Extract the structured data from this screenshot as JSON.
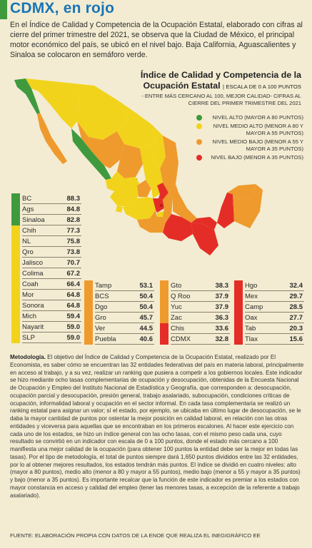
{
  "header": {
    "title": "CDMX, en rojo",
    "intro": "En el Índice de Calidad y Competencia de la Ocupación Estatal, elaborado con cifras al cierre del primer trimestre del 2021, se observa que la Ciudad de México, el principal motor económico del país, se ubicó en el nivel bajo. Baja California, Aguascalientes y Sinaloa se colocaron en semáforo verde."
  },
  "chart_data": {
    "type": "table",
    "title_line1": "Índice de Calidad y Competencia de la",
    "title_line2": "Ocupación Estatal",
    "scale": "ESCALA DE 0 A 100 PUNTOS",
    "subtitle": "- ENTRE MÁS CERCANO AL 100, MEJOR CALIDAD- CIFRAS AL CIERRE DEL PRIMER TRIMESTRE DEL 2021",
    "legend": [
      {
        "label": "NIVEL ALTO (MAYOR A 80 PUNTOS)",
        "color": "#3f9a3e"
      },
      {
        "label": "NIVEL MEDIO ALTO (MENOR A 80 Y MAYOR A 55 PUNTOS)",
        "color": "#f2d31b"
      },
      {
        "label": "NIVEL MEDIO BAJO (MENOR A 55 Y MAYOR A 35 PUNTOS)",
        "color": "#ef9a2d"
      },
      {
        "label": "NIVEL BAJO (MENOR A 35 PUNTOS)",
        "color": "#e42d26"
      }
    ],
    "columns": [
      {
        "level": "alto",
        "color": "#3f9a3e",
        "rows": [
          [
            "BC",
            88.3
          ],
          [
            "Ags",
            84.8
          ],
          [
            "Sinaloa",
            82.8
          ]
        ]
      },
      {
        "level": "medio alto",
        "color": "#f2d31b",
        "rows": [
          [
            "Chih",
            77.3
          ],
          [
            "NL",
            75.8
          ],
          [
            "Qro",
            73.8
          ],
          [
            "Jalisco",
            70.7
          ],
          [
            "Colima",
            67.2
          ],
          [
            "Coah",
            66.4
          ],
          [
            "Mor",
            64.8
          ],
          [
            "Sonora",
            64.8
          ],
          [
            "Mich",
            59.4
          ],
          [
            "Nayarit",
            59.0
          ],
          [
            "SLP",
            59.0
          ]
        ]
      },
      {
        "level": "medio bajo 1",
        "color": "#ef9a2d",
        "rows": [
          [
            "Tamp",
            53.1
          ],
          [
            "BCS",
            50.4
          ],
          [
            "Dgo",
            50.4
          ],
          [
            "Gro",
            45.7
          ],
          [
            "Ver",
            44.5
          ],
          [
            "Puebla",
            40.6
          ]
        ]
      },
      {
        "level": "medio bajo 2",
        "color": "#ef9a2d",
        "rows": [
          [
            "Gto",
            38.3
          ],
          [
            "Q Roo",
            37.9
          ],
          [
            "Yuc",
            37.9
          ],
          [
            "Zac",
            36.3
          ]
        ]
      },
      {
        "level": "bajo 1",
        "color": "#e42d26",
        "rows": [
          [
            "Chis",
            33.6
          ],
          [
            "CDMX",
            32.8
          ]
        ]
      },
      {
        "level": "bajo 2",
        "color": "#e42d26",
        "rows": [
          [
            "Hgo",
            32.4
          ],
          [
            "Mex",
            29.7
          ],
          [
            "Camp",
            28.5
          ],
          [
            "Oax",
            27.7
          ],
          [
            "Tab",
            20.3
          ],
          [
            "Tlax",
            15.6
          ]
        ]
      }
    ]
  },
  "methodology": {
    "label": "Metodología.",
    "text": "El objetivo del Índice de Calidad y Competencia de la Ocupación Estatal, realizado por El Economista, es saber cómo se encuentran las 32 entidades federativas del país en materia laboral, principalmente en acceso al trabajo, y a su vez, realizar un ranking que pusiera a competir a los gobiernos locales. Este indicador se hizo mediante ocho tasas complementarias de ocupación y desocupación, obtenidas de la Encuesta Nacional de Ocupación y Empleo del Instituto Nacional de Estadística y Geografía, que corresponden a: desocupación, ocupación parcial y desocupación, presión general, trabajo asalariado, subocupación, condiciones críticas de ocupación, informalidad laboral y ocupación en el sector informal. En cada tasa complementaria se realizó un ranking estatal para asignar un valor; sí el estado, por ejemplo, se ubicaba en último lugar de desocupación, se le daba la mayor cantidad de puntos por ostentar la mejor posición en calidad laboral, en relación con las otras entidades y viceversa para aquellas que se encontraban en los primeros escalones. Al hacer este ejercicio con cada uno de los estados, se hizo un índice general con las ocho tasas, con el mismo peso cada una, cuyo resultado se convirtió en un indicador con escala de 0 a 100 puntos, donde el estado más cercano a 100 manifiesta una mejor calidad de la ocupación (para obtener 100 puntos la entidad debe ser la mejor en todas las tasas). Por el tipo de metodología, el total de puntos siempre dará 1,650 puntos divididos entre las 32 entidades, por lo al obtener mejores resultados, los estados tendrán más puntos. El índice se dividió en cuatro niveles: alto (mayor a 80 puntos), medio alto (menor a 80 y mayor a 55 puntos), medio bajo (menor a 55 y mayor a 35 puntos) y bajo (menor a 35 puntos). Es importante recalcar que la función de este indicador es premiar a los estados con mayor constancia en acceso y calidad del empleo (tener las menores tasas, a excepción de la referente a trabajo asalariado)."
  },
  "source": "FUENTE: ELABORACIÓN PROPIA CON DATOS DE LA ENOE QUE REALIZA EL INEGIGRÁFICO EE"
}
